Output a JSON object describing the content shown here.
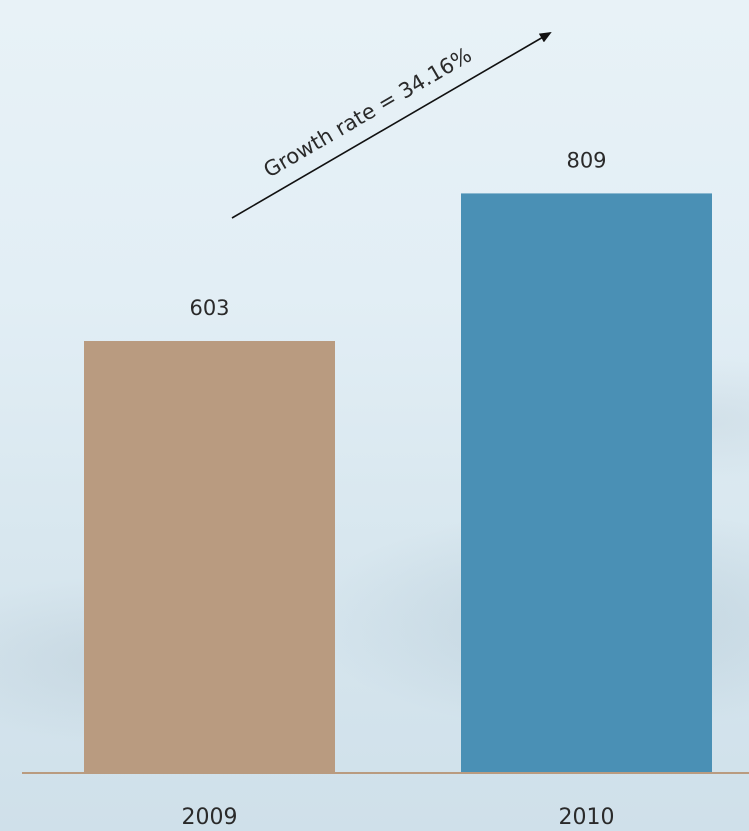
{
  "chart_data": {
    "type": "bar",
    "categories": [
      "2009",
      "2010"
    ],
    "values": [
      603,
      809
    ],
    "value_labels": [
      "603",
      "809"
    ],
    "bar_colors": [
      "#b99b80",
      "#4a90b5"
    ],
    "baseline_color": "#b99b80",
    "annotation": "Growth rate = 34.16%",
    "ylim": [
      0,
      900
    ],
    "grid": false,
    "legend": "none"
  }
}
